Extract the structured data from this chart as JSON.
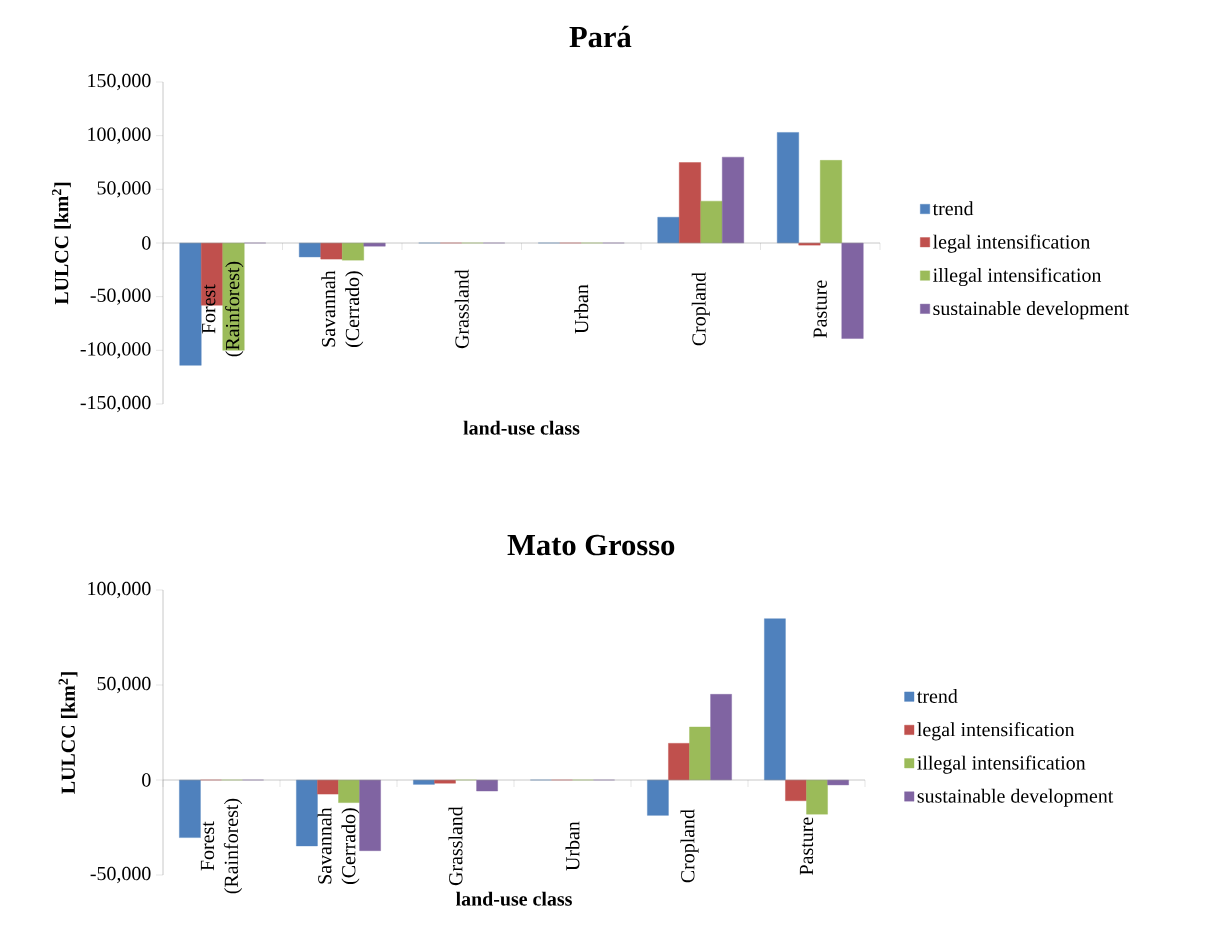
{
  "chart_data": [
    {
      "type": "bar",
      "title": "Pará",
      "xlabel": "land-use class",
      "ylabel": "LULCC [km$^{2}$]",
      "categories": [
        "Forest (Rainforest)",
        "Savannah (Cerrado)",
        "Grassland",
        "Urban",
        "Cropland",
        "Pasture"
      ],
      "series": [
        {
          "name": "trend",
          "color": "#4f81bd",
          "values": [
            -114000,
            -13000,
            0,
            0,
            24000,
            103000
          ]
        },
        {
          "name": "legal intensification",
          "color": "#c0504d",
          "values": [
            -58000,
            -15000,
            0,
            0,
            75000,
            -2000
          ]
        },
        {
          "name": "illegal intensification",
          "color": "#9bbb59",
          "values": [
            -100000,
            -16000,
            0,
            0,
            39000,
            77000
          ]
        },
        {
          "name": "sustainable development",
          "color": "#8064a2",
          "values": [
            0,
            -3000,
            0,
            0,
            80000,
            -89000
          ]
        }
      ],
      "ylim": [
        -150000,
        150000
      ],
      "yticks": [
        {
          "value": -150000,
          "label": "-150,000"
        },
        {
          "value": -100000,
          "label": "-100,000"
        },
        {
          "value": -50000,
          "label": "-50,000"
        },
        {
          "value": 0,
          "label": "0"
        },
        {
          "value": 50000,
          "label": "50,000"
        },
        {
          "value": 100000,
          "label": "100,000"
        },
        {
          "value": 150000,
          "label": "150,000"
        }
      ],
      "legend": "right"
    },
    {
      "type": "bar",
      "title": "Mato Grosso",
      "xlabel": "land-use class",
      "ylabel": "LULCC [km$^{2}$]",
      "categories": [
        "Forest (Rainforest)",
        "Savannah (Cerrado)",
        "Grassland",
        "Urban",
        "Cropland",
        "Pasture"
      ],
      "series": [
        {
          "name": "trend",
          "color": "#4f81bd",
          "values": [
            -30300,
            -34700,
            -2300,
            0,
            -18600,
            84900
          ]
        },
        {
          "name": "legal intensification",
          "color": "#c0504d",
          "values": [
            0,
            -7400,
            -1700,
            0,
            19300,
            -10900
          ]
        },
        {
          "name": "illegal intensification",
          "color": "#9bbb59",
          "values": [
            0,
            -11900,
            0,
            0,
            27900,
            -18000
          ]
        },
        {
          "name": "sustainable development",
          "color": "#8064a2",
          "values": [
            0,
            -37200,
            -5800,
            0,
            45100,
            -2600
          ]
        }
      ],
      "ylim": [
        -50000,
        100000
      ],
      "yticks": [
        {
          "value": -50000,
          "label": "-50,000"
        },
        {
          "value": 0,
          "label": "0"
        },
        {
          "value": 50000,
          "label": "50,000"
        },
        {
          "value": 100000,
          "label": "100,000"
        }
      ],
      "legend": "right"
    }
  ]
}
